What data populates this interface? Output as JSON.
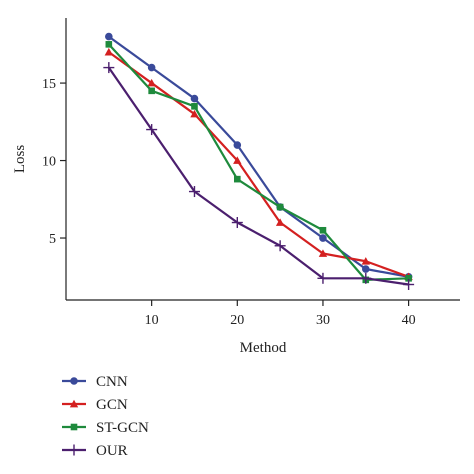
{
  "chart_data": {
    "type": "line",
    "title": "",
    "xlabel": "Method",
    "ylabel": "Loss",
    "xlim": [
      0,
      46
    ],
    "ylim": [
      1,
      19.2
    ],
    "xticks": [
      10,
      20,
      30,
      40
    ],
    "yticks": [
      5,
      10,
      15
    ],
    "grid": false,
    "legend_position": "bottom-left",
    "x": [
      5,
      10,
      15,
      20,
      25,
      30,
      35,
      40
    ],
    "series": [
      {
        "name": "CNN",
        "color": "#3a4a9a",
        "marker": "circle",
        "values": [
          18,
          16,
          14,
          11,
          7,
          5,
          3,
          2.5
        ]
      },
      {
        "name": "GCN",
        "color": "#d42020",
        "marker": "triangle",
        "values": [
          17,
          15,
          13,
          10,
          6,
          4,
          3.5,
          2.5
        ]
      },
      {
        "name": "ST-GCN",
        "color": "#1e8a3c",
        "marker": "square",
        "values": [
          17.5,
          14.5,
          13.5,
          8.8,
          7,
          5.5,
          2.3,
          2.4
        ]
      },
      {
        "name": "OUR",
        "color": "#4b1f6e",
        "marker": "plus",
        "values": [
          16,
          12,
          8,
          6,
          4.5,
          2.4,
          2.4,
          2
        ]
      }
    ]
  }
}
